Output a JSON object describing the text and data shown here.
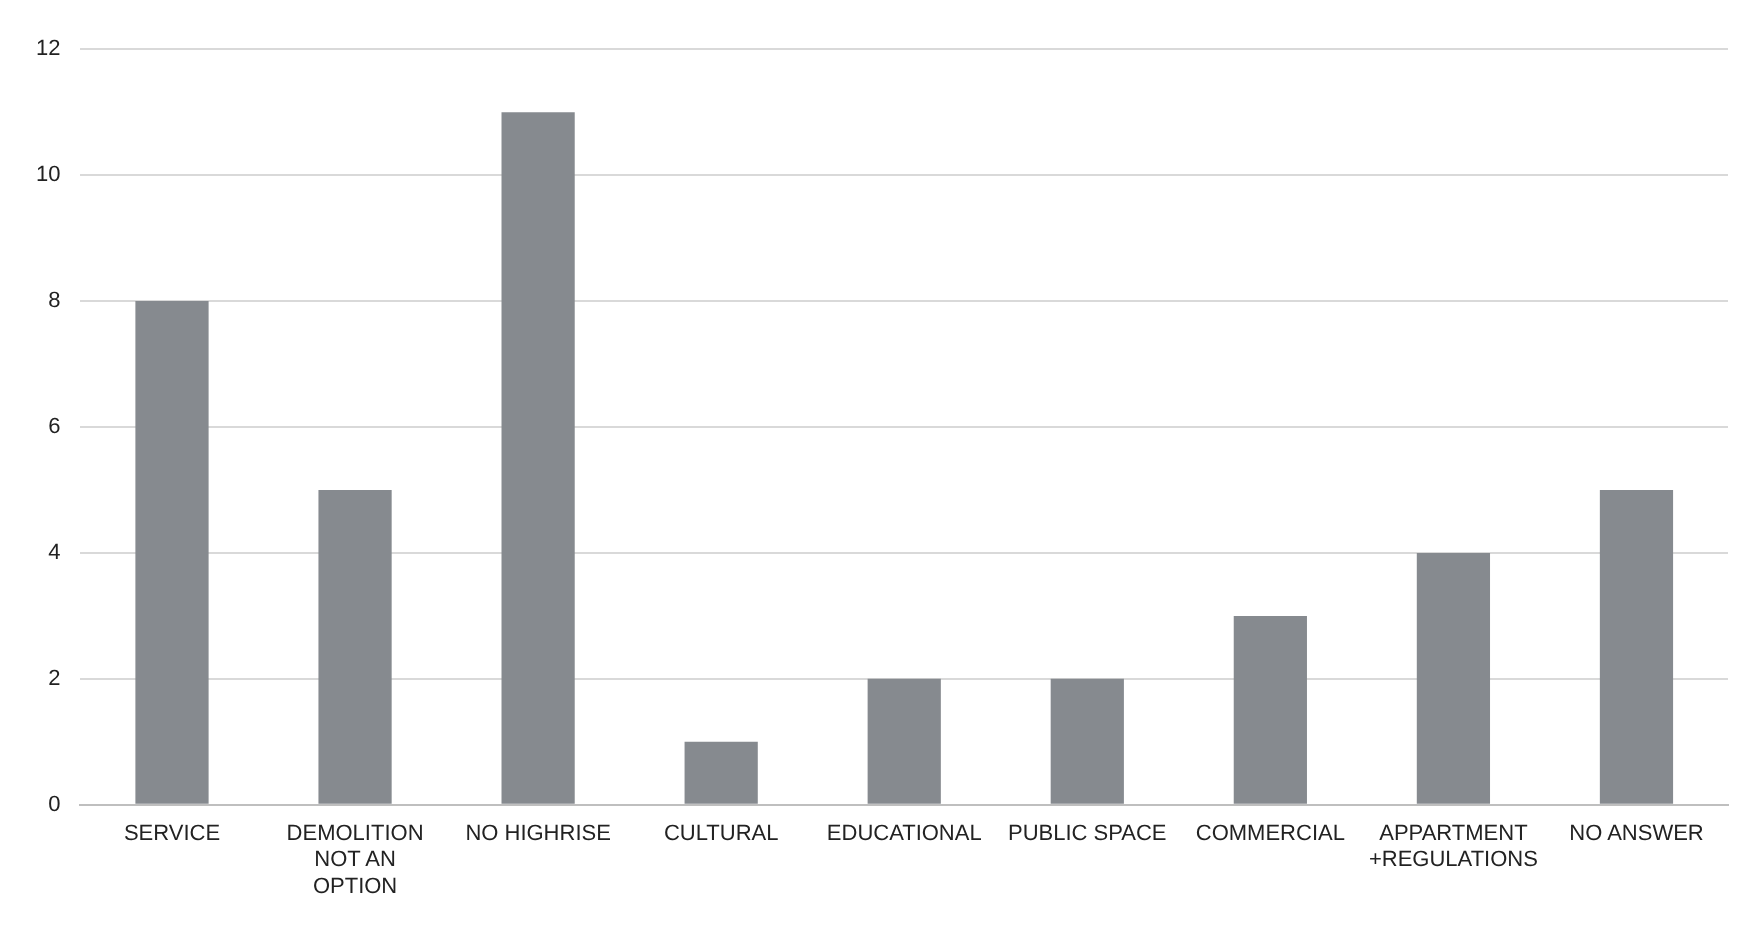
{
  "chart_data": {
    "type": "bar",
    "categories": [
      "SERVICE",
      "DEMOLITION NOT AN OPTION",
      "NO HIGHRISE",
      "CULTURAL",
      "EDUCATIONAL",
      "PUBLIC SPACE",
      "COMMERCIAL",
      "APPARTMENT +REGULATIONS",
      "NO ANSWER"
    ],
    "values": [
      8,
      5,
      11,
      1,
      2,
      2,
      3,
      4,
      5
    ],
    "color": "#868a8f",
    "ylim": [
      0,
      12
    ],
    "yticks": [
      0,
      2,
      4,
      6,
      8,
      10,
      12
    ],
    "grid": "y",
    "legend": false
  }
}
